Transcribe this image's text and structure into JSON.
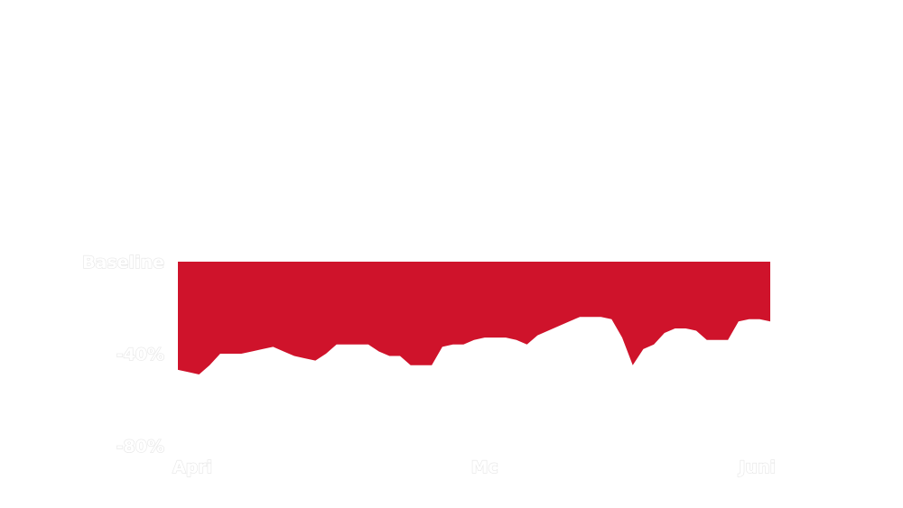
{
  "chart_data": {
    "type": "area",
    "title": "",
    "xlabel": "",
    "ylabel": "",
    "fill_color": "#cf132b",
    "background_color": "#ffffff",
    "label_color": "#ffffff",
    "baseline_label": "Baseline",
    "y_ticks": [
      {
        "value": 0,
        "label": "Baseline"
      },
      {
        "value": -40,
        "label": "-40%"
      },
      {
        "value": -80,
        "label": "-80%"
      }
    ],
    "ylim": [
      -80,
      0
    ],
    "x_ticks": [
      {
        "index": 0,
        "label": "Apri"
      },
      {
        "index": 29,
        "label": "Mc"
      },
      {
        "index": 56,
        "label": "Juni"
      }
    ],
    "x_count": 57,
    "series": [
      {
        "values": [
          -47,
          -48,
          -49,
          -45,
          -40,
          -40,
          -40,
          -39,
          -38,
          -37,
          -39,
          -41,
          -42,
          -43,
          -40,
          -36,
          -36,
          -36,
          -36,
          -39,
          -41,
          -41,
          -45,
          -45,
          -45,
          -37,
          -36,
          -36,
          -34,
          -33,
          -33,
          -33,
          -34,
          -36,
          -32,
          -30,
          -28,
          -26,
          -24,
          -24,
          -24,
          -25,
          -33,
          -45,
          -38,
          -36,
          -31,
          -29,
          -29,
          -30,
          -34,
          -34,
          -34,
          -26,
          -25,
          -25,
          -26
        ]
      }
    ]
  }
}
